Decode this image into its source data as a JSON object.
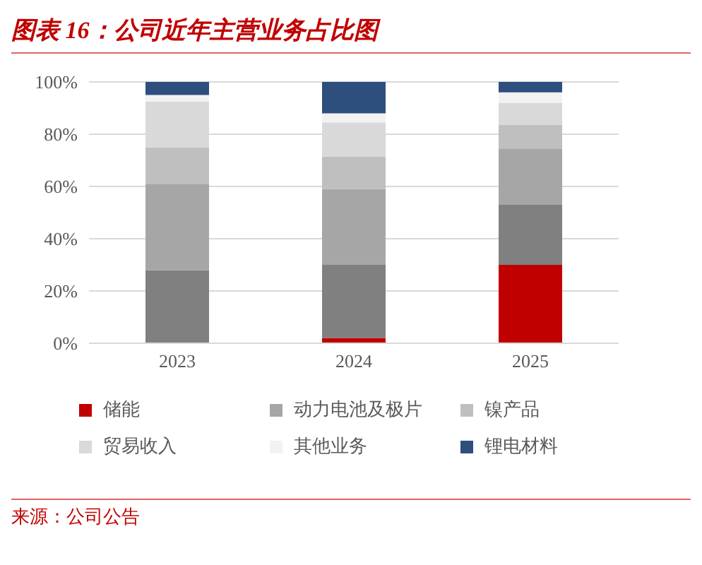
{
  "chart_data": {
    "type": "bar",
    "title": "图表 16：公司近年主营业务占比图",
    "categories": [
      "2023",
      "2024",
      "2025"
    ],
    "stacked": true,
    "series": [
      {
        "name": "储能",
        "color": "#c00000",
        "values": [
          0,
          2,
          30
        ]
      },
      {
        "color": "#808080",
        "values": [
          28,
          28,
          23
        ]
      },
      {
        "name": "动力电池及极片",
        "color": "#a6a6a6",
        "values": [
          33,
          29,
          21.5
        ]
      },
      {
        "name": "镍产品",
        "color": "#bfbfbf",
        "values": [
          14,
          12.5,
          9
        ]
      },
      {
        "name": "贸易收入",
        "color": "#d9d9d9",
        "values": [
          17.5,
          13,
          8.5
        ]
      },
      {
        "name": "其他业务",
        "color": "#f2f2f2",
        "values": [
          2.5,
          3.5,
          4
        ]
      },
      {
        "name": "锂电材料",
        "color": "#2e4e7e",
        "values": [
          5,
          12,
          4
        ]
      }
    ],
    "ylim": [
      0,
      100
    ],
    "yticks": [
      {
        "value": 0,
        "label": "0%"
      },
      {
        "value": 20,
        "label": "20%"
      },
      {
        "value": 40,
        "label": "40%"
      },
      {
        "value": 60,
        "label": "60%"
      },
      {
        "value": 80,
        "label": "80%"
      },
      {
        "value": 100,
        "label": "100%"
      }
    ],
    "grid": "y",
    "legend": "bottom",
    "annotations": [
      "来源：公司公告"
    ]
  }
}
